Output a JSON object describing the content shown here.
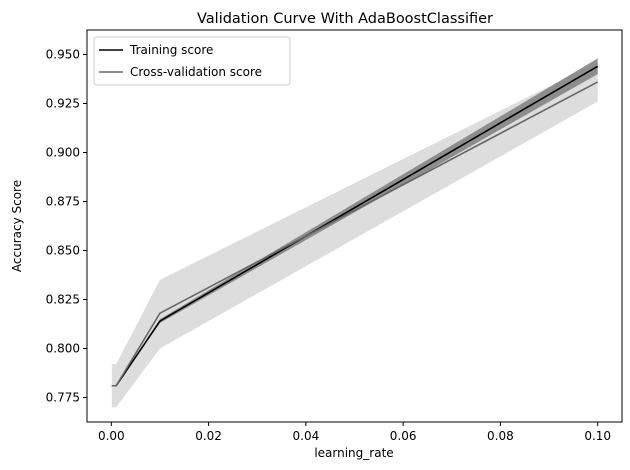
{
  "chart_data": {
    "type": "line",
    "title": "Validation Curve With AdaBoostClassifier",
    "xlabel": "learning_rate",
    "ylabel": "Accuracy Score",
    "xlim": [
      -0.005,
      0.105
    ],
    "ylim": [
      0.7625,
      0.9625
    ],
    "xticks": [
      0.0,
      0.02,
      0.04,
      0.06,
      0.08,
      0.1
    ],
    "xtick_labels": [
      "0.00",
      "0.02",
      "0.04",
      "0.06",
      "0.08",
      "0.10"
    ],
    "yticks": [
      0.775,
      0.8,
      0.825,
      0.85,
      0.875,
      0.9,
      0.925,
      0.95
    ],
    "ytick_labels": [
      "0.775",
      "0.800",
      "0.825",
      "0.850",
      "0.875",
      "0.900",
      "0.925",
      "0.950"
    ],
    "grid": false,
    "legend_position": "top-left",
    "x": [
      0.0001,
      0.001,
      0.01,
      0.1
    ],
    "series": [
      {
        "name": "Training score",
        "color": "#000000",
        "values": [
          0.781,
          0.781,
          0.814,
          0.944
        ],
        "band_lower": [
          0.781,
          0.781,
          0.813,
          0.94
        ],
        "band_upper": [
          0.781,
          0.781,
          0.815,
          0.948
        ],
        "band_color": "#7f7f7f"
      },
      {
        "name": "Cross-validation score",
        "color": "#666666",
        "values": [
          0.781,
          0.781,
          0.818,
          0.936
        ],
        "band_lower": [
          0.77,
          0.77,
          0.8,
          0.926
        ],
        "band_upper": [
          0.792,
          0.792,
          0.835,
          0.946
        ],
        "band_color": "#dddddd"
      }
    ]
  }
}
